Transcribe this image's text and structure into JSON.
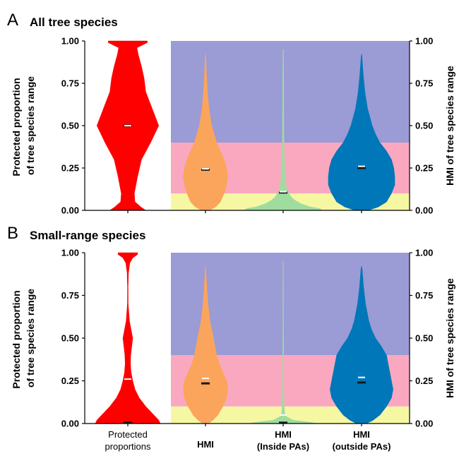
{
  "colors": {
    "protected": "#ff0000",
    "hmi": "#fba55c",
    "hmi_inside": "#9fdd9f",
    "hmi_outside": "#0077b8",
    "band_high": "#9b9bd6",
    "band_mid": "#f9a8c0",
    "band_low": "#f6f7a2",
    "median": "#1a1a1a",
    "mean": "#ffffff"
  },
  "categories": [
    "Protected\nproportions",
    "HMI",
    "HMI\n(Inside PAs)",
    "HMI\n(outside PAs)"
  ],
  "chart_data": [
    {
      "type": "violin",
      "panel_letter": "A",
      "title": "All tree species",
      "ylabel_left": "Protected proportion\nof tree species range",
      "ylabel_right": "HMI of tree species range",
      "ylim": [
        0,
        1
      ],
      "yticks": [
        "0.00",
        "0.25",
        "0.50",
        "0.75",
        "1.00"
      ],
      "hmi_bands": [
        {
          "from": 0,
          "to": 0.1
        },
        {
          "from": 0.1,
          "to": 0.4
        },
        {
          "from": 0.4,
          "to": 1.0
        }
      ],
      "series": [
        {
          "category": "Protected\nproportions",
          "color_key": "protected",
          "median": 0.5,
          "mean": 0.5,
          "profile": [
            [
              0,
              0.55
            ],
            [
              0.02,
              0.4
            ],
            [
              0.05,
              0.22
            ],
            [
              0.1,
              0.2
            ],
            [
              0.2,
              0.3
            ],
            [
              0.3,
              0.42
            ],
            [
              0.4,
              0.7
            ],
            [
              0.5,
              0.95
            ],
            [
              0.6,
              0.75
            ],
            [
              0.7,
              0.55
            ],
            [
              0.78,
              0.5
            ],
            [
              0.85,
              0.42
            ],
            [
              0.92,
              0.32
            ],
            [
              0.96,
              0.28
            ],
            [
              0.99,
              0.6
            ],
            [
              1.0,
              0.6
            ]
          ]
        },
        {
          "category": "HMI",
          "color_key": "hmi",
          "median": 0.24,
          "mean": 0.245,
          "profile": [
            [
              0,
              0.15
            ],
            [
              0.02,
              0.4
            ],
            [
              0.05,
              0.6
            ],
            [
              0.1,
              0.75
            ],
            [
              0.15,
              0.85
            ],
            [
              0.2,
              0.9
            ],
            [
              0.25,
              0.85
            ],
            [
              0.3,
              0.75
            ],
            [
              0.35,
              0.6
            ],
            [
              0.4,
              0.45
            ],
            [
              0.45,
              0.35
            ],
            [
              0.5,
              0.25
            ],
            [
              0.6,
              0.14
            ],
            [
              0.7,
              0.08
            ],
            [
              0.8,
              0.04
            ],
            [
              0.9,
              0.015
            ],
            [
              0.92,
              0.005
            ]
          ]
        },
        {
          "category": "HMI\n(Inside PAs)",
          "color_key": "hmi_inside",
          "median": 0.105,
          "mean": 0.11,
          "profile": [
            [
              0,
              1.0
            ],
            [
              0.01,
              0.95
            ],
            [
              0.02,
              0.7
            ],
            [
              0.04,
              0.45
            ],
            [
              0.06,
              0.3
            ],
            [
              0.08,
              0.2
            ],
            [
              0.1,
              0.15
            ],
            [
              0.12,
              0.1
            ],
            [
              0.15,
              0.07
            ],
            [
              0.2,
              0.05
            ],
            [
              0.3,
              0.03
            ],
            [
              0.4,
              0.02
            ],
            [
              0.6,
              0.015
            ],
            [
              0.8,
              0.01
            ],
            [
              0.95,
              0.005
            ]
          ]
        },
        {
          "category": "HMI\n(outside PAs)",
          "color_key": "hmi_outside",
          "median": 0.25,
          "mean": 0.26,
          "profile": [
            [
              0,
              0.2
            ],
            [
              0.02,
              0.5
            ],
            [
              0.05,
              0.75
            ],
            [
              0.1,
              0.9
            ],
            [
              0.15,
              1.0
            ],
            [
              0.2,
              1.0
            ],
            [
              0.25,
              0.97
            ],
            [
              0.3,
              0.9
            ],
            [
              0.35,
              0.75
            ],
            [
              0.4,
              0.55
            ],
            [
              0.45,
              0.42
            ],
            [
              0.5,
              0.32
            ],
            [
              0.55,
              0.25
            ],
            [
              0.6,
              0.18
            ],
            [
              0.7,
              0.1
            ],
            [
              0.8,
              0.05
            ],
            [
              0.9,
              0.015
            ],
            [
              0.92,
              0.005
            ]
          ]
        }
      ]
    },
    {
      "type": "violin",
      "panel_letter": "B",
      "title": "Small-range species",
      "ylabel_left": "Protected proportion\nof tree species range",
      "ylabel_right": "HMI of tree species range",
      "ylim": [
        0,
        1
      ],
      "yticks": [
        "0.00",
        "0.25",
        "0.50",
        "0.75",
        "1.00"
      ],
      "hmi_bands": [
        {
          "from": 0,
          "to": 0.1
        },
        {
          "from": 0.1,
          "to": 0.4
        },
        {
          "from": 0.4,
          "to": 1.0
        }
      ],
      "series": [
        {
          "category": "Protected\nproportions",
          "color_key": "protected",
          "median": 0.005,
          "mean": 0.26,
          "profile": [
            [
              0,
              1.0
            ],
            [
              0.02,
              0.95
            ],
            [
              0.05,
              0.8
            ],
            [
              0.1,
              0.55
            ],
            [
              0.15,
              0.35
            ],
            [
              0.2,
              0.22
            ],
            [
              0.25,
              0.15
            ],
            [
              0.3,
              0.1
            ],
            [
              0.35,
              0.08
            ],
            [
              0.4,
              0.09
            ],
            [
              0.45,
              0.12
            ],
            [
              0.5,
              0.15
            ],
            [
              0.55,
              0.1
            ],
            [
              0.6,
              0.05
            ],
            [
              0.7,
              0.01
            ],
            [
              0.8,
              0.008
            ],
            [
              0.88,
              0.02
            ],
            [
              0.94,
              0.06
            ],
            [
              0.97,
              0.15
            ],
            [
              0.99,
              0.3
            ],
            [
              1.0,
              0.3
            ]
          ]
        },
        {
          "category": "HMI",
          "color_key": "hmi",
          "median": 0.235,
          "mean": 0.265,
          "profile": [
            [
              0,
              0.1
            ],
            [
              0.02,
              0.3
            ],
            [
              0.05,
              0.5
            ],
            [
              0.1,
              0.7
            ],
            [
              0.15,
              0.85
            ],
            [
              0.2,
              0.9
            ],
            [
              0.25,
              0.85
            ],
            [
              0.3,
              0.7
            ],
            [
              0.35,
              0.55
            ],
            [
              0.4,
              0.45
            ],
            [
              0.45,
              0.38
            ],
            [
              0.5,
              0.32
            ],
            [
              0.55,
              0.25
            ],
            [
              0.6,
              0.18
            ],
            [
              0.7,
              0.1
            ],
            [
              0.8,
              0.05
            ],
            [
              0.9,
              0.015
            ],
            [
              0.92,
              0.005
            ]
          ]
        },
        {
          "category": "HMI\n(Inside PAs)",
          "color_key": "hmi_inside",
          "median": 0.005,
          "mean": 0.05,
          "profile": [
            [
              0,
              0.9
            ],
            [
              0.01,
              0.6
            ],
            [
              0.02,
              0.25
            ],
            [
              0.04,
              0.08
            ],
            [
              0.06,
              0.04
            ],
            [
              0.1,
              0.025
            ],
            [
              0.2,
              0.015
            ],
            [
              0.4,
              0.01
            ],
            [
              0.6,
              0.008
            ],
            [
              0.8,
              0.006
            ],
            [
              0.95,
              0.003
            ]
          ]
        },
        {
          "category": "HMI\n(outside PAs)",
          "color_key": "hmi_outside",
          "median": 0.24,
          "mean": 0.27,
          "profile": [
            [
              0,
              0.15
            ],
            [
              0.02,
              0.35
            ],
            [
              0.05,
              0.55
            ],
            [
              0.1,
              0.75
            ],
            [
              0.15,
              0.9
            ],
            [
              0.2,
              0.95
            ],
            [
              0.25,
              0.9
            ],
            [
              0.3,
              0.85
            ],
            [
              0.35,
              0.8
            ],
            [
              0.4,
              0.75
            ],
            [
              0.45,
              0.6
            ],
            [
              0.5,
              0.42
            ],
            [
              0.55,
              0.3
            ],
            [
              0.6,
              0.22
            ],
            [
              0.7,
              0.12
            ],
            [
              0.8,
              0.06
            ],
            [
              0.9,
              0.02
            ],
            [
              0.92,
              0.005
            ]
          ]
        }
      ]
    }
  ]
}
